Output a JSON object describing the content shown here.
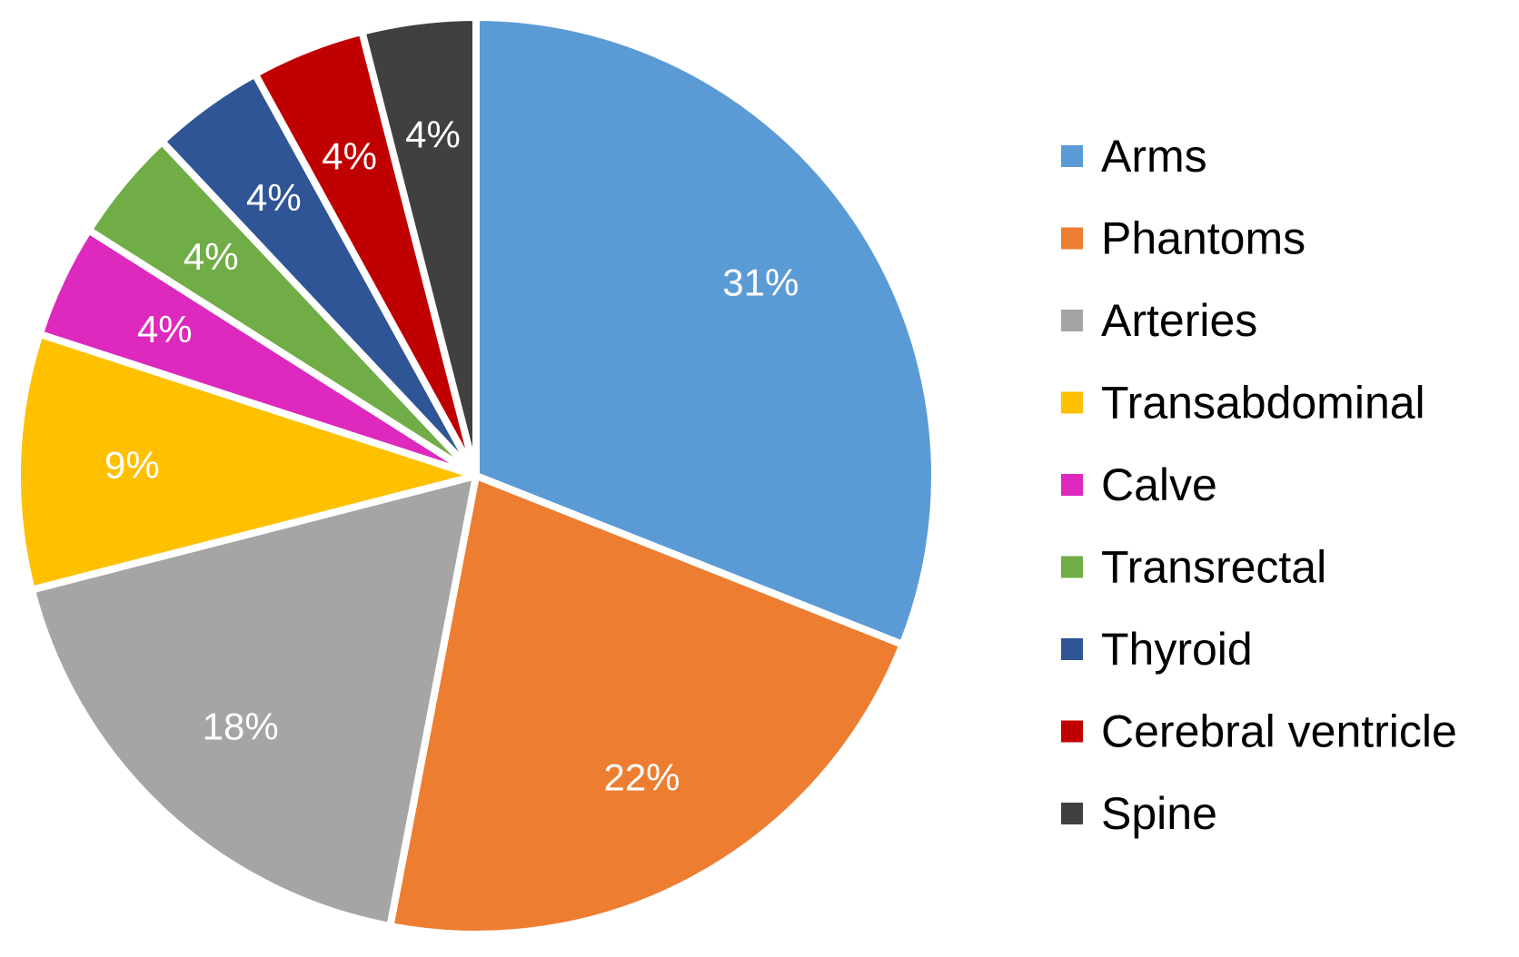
{
  "chart_data": {
    "type": "pie",
    "title": "",
    "legend_position": "right",
    "slices": [
      {
        "label": "Arms",
        "value": 31,
        "value_label": "31%",
        "color": "#5b9bd5"
      },
      {
        "label": "Phantoms",
        "value": 22,
        "value_label": "22%",
        "color": "#ed7d31"
      },
      {
        "label": "Arteries",
        "value": 18,
        "value_label": "18%",
        "color": "#a5a5a5"
      },
      {
        "label": "Transabdominal",
        "value": 9,
        "value_label": "9%",
        "color": "#ffc000"
      },
      {
        "label": "Calve",
        "value": 4,
        "value_label": "4%",
        "color": "#dd29bd"
      },
      {
        "label": "Transrectal",
        "value": 4,
        "value_label": "4%",
        "color": "#70ad47"
      },
      {
        "label": "Thyroid",
        "value": 4,
        "value_label": "4%",
        "color": "#2f5597"
      },
      {
        "label": "Cerebral ventricle",
        "value": 4,
        "value_label": "4%",
        "color": "#c00000"
      },
      {
        "label": "Spine",
        "value": 4,
        "value_label": "4%",
        "color": "#404040"
      }
    ]
  }
}
